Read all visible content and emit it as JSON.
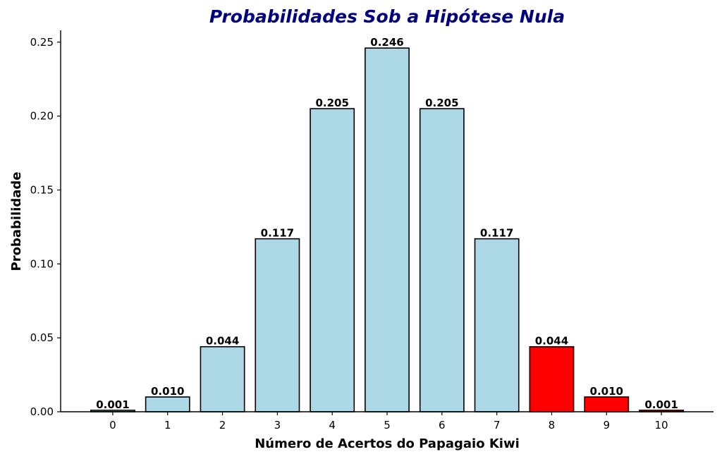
{
  "chart_data": {
    "type": "bar",
    "title": "Probabilidades Sob a Hipótese Nula",
    "xlabel": "Número de Acertos do Papagaio Kiwi",
    "ylabel": "Probabilidade",
    "categories": [
      "0",
      "1",
      "2",
      "3",
      "4",
      "5",
      "6",
      "7",
      "8",
      "9",
      "10"
    ],
    "values": [
      0.001,
      0.01,
      0.044,
      0.117,
      0.205,
      0.246,
      0.205,
      0.117,
      0.044,
      0.01,
      0.001
    ],
    "value_labels": [
      "0.001",
      "0.010",
      "0.044",
      "0.117",
      "0.205",
      "0.246",
      "0.205",
      "0.117",
      "0.044",
      "0.010",
      "0.001"
    ],
    "bar_colors": [
      "#add8e6",
      "#add8e6",
      "#add8e6",
      "#add8e6",
      "#add8e6",
      "#add8e6",
      "#add8e6",
      "#add8e6",
      "#ff0000",
      "#ff0000",
      "#ff0000"
    ],
    "ylim": [
      0,
      0.258
    ],
    "yticks": [
      0.0,
      0.05,
      0.1,
      0.15,
      0.2,
      0.25
    ],
    "ytick_labels": [
      "0.00",
      "0.05",
      "0.10",
      "0.15",
      "0.20",
      "0.25"
    ],
    "grid": false,
    "colors": {
      "title": "#000080",
      "edge": "#000000"
    }
  }
}
